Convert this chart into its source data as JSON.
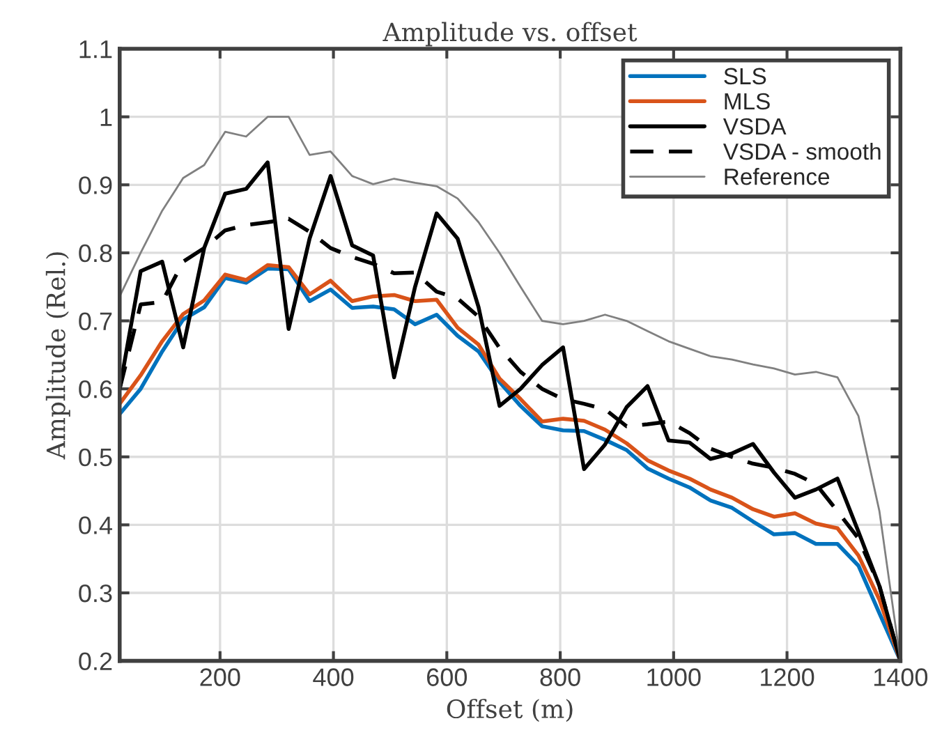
{
  "chart_data": {
    "type": "line",
    "title": "Amplitude vs. offset",
    "xlabel": "Offset (m)",
    "ylabel": "Amplitude (Rel.)",
    "x": [
      23,
      60,
      98,
      135,
      172,
      209,
      246,
      284,
      321,
      358,
      395,
      433,
      470,
      507,
      544,
      582,
      619,
      656,
      693,
      730,
      768,
      805,
      842,
      879,
      917,
      954,
      991,
      1028,
      1065,
      1103,
      1140,
      1177,
      1214,
      1251,
      1289,
      1326,
      1363,
      1400
    ],
    "series": [
      {
        "name": "SLS",
        "color": "#0072bd",
        "line_style": "solid",
        "values": [
          0.563,
          0.6,
          0.655,
          0.702,
          0.72,
          0.763,
          0.756,
          0.777,
          0.776,
          0.729,
          0.746,
          0.719,
          0.721,
          0.717,
          0.695,
          0.709,
          0.678,
          0.655,
          0.61,
          0.575,
          0.545,
          0.539,
          0.538,
          0.525,
          0.51,
          0.483,
          0.468,
          0.455,
          0.436,
          0.425,
          0.405,
          0.386,
          0.388,
          0.372,
          0.372,
          0.34,
          0.27,
          0.2
        ]
      },
      {
        "name": "MLS",
        "color": "#d95319",
        "line_style": "solid",
        "values": [
          0.578,
          0.62,
          0.67,
          0.71,
          0.73,
          0.768,
          0.76,
          0.782,
          0.779,
          0.739,
          0.759,
          0.729,
          0.736,
          0.738,
          0.729,
          0.731,
          0.69,
          0.665,
          0.615,
          0.585,
          0.552,
          0.556,
          0.553,
          0.54,
          0.52,
          0.495,
          0.48,
          0.468,
          0.452,
          0.44,
          0.423,
          0.412,
          0.417,
          0.402,
          0.395,
          0.355,
          0.29,
          0.2
        ]
      },
      {
        "name": "VSDA",
        "color": "#000000",
        "line_style": "solid",
        "values": [
          0.6,
          0.773,
          0.787,
          0.661,
          0.807,
          0.887,
          0.894,
          0.933,
          0.688,
          0.821,
          0.913,
          0.811,
          0.796,
          0.617,
          0.75,
          0.858,
          0.821,
          0.72,
          0.575,
          0.6,
          0.635,
          0.661,
          0.482,
          0.518,
          0.573,
          0.604,
          0.524,
          0.521,
          0.497,
          0.505,
          0.519,
          0.477,
          0.44,
          0.452,
          0.468,
          0.39,
          0.31,
          0.2
        ]
      },
      {
        "name": "VSDA - smooth",
        "color": "#000000",
        "line_style": "dashed",
        "values": [
          0.6,
          0.724,
          0.728,
          0.787,
          0.807,
          0.833,
          0.841,
          0.845,
          0.85,
          0.831,
          0.807,
          0.794,
          0.784,
          0.77,
          0.771,
          0.743,
          0.733,
          0.706,
          0.66,
          0.625,
          0.6,
          0.585,
          0.578,
          0.57,
          0.545,
          0.548,
          0.552,
          0.535,
          0.512,
          0.5,
          0.49,
          0.484,
          0.475,
          0.46,
          0.42,
          0.38,
          0.31,
          0.2
        ]
      },
      {
        "name": "Reference",
        "color": "#808080",
        "line_style": "solid",
        "values": [
          0.736,
          0.8,
          0.862,
          0.91,
          0.929,
          0.978,
          0.971,
          1.0,
          1.0,
          0.944,
          0.949,
          0.913,
          0.901,
          0.909,
          0.903,
          0.898,
          0.88,
          0.845,
          0.8,
          0.75,
          0.7,
          0.695,
          0.7,
          0.709,
          0.7,
          0.685,
          0.67,
          0.659,
          0.648,
          0.643,
          0.636,
          0.63,
          0.621,
          0.625,
          0.617,
          0.56,
          0.42,
          0.2
        ]
      }
    ],
    "xlim": [
      23,
      1400
    ],
    "xticks": [
      200,
      400,
      600,
      800,
      1000,
      1200,
      1400
    ],
    "ylim": [
      0.2,
      1.1
    ],
    "yticks": [
      0.2,
      0.3,
      0.4,
      0.5,
      0.6,
      0.7,
      0.8,
      0.9,
      1,
      1.1
    ],
    "grid": true,
    "legend": "top right",
    "marker": "none"
  }
}
